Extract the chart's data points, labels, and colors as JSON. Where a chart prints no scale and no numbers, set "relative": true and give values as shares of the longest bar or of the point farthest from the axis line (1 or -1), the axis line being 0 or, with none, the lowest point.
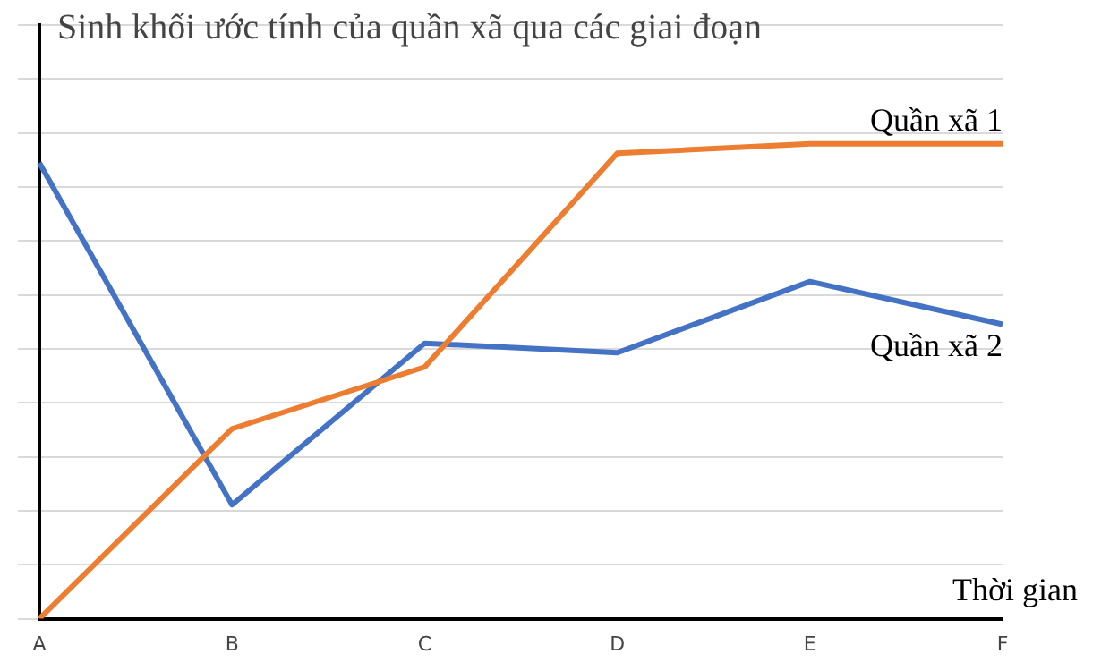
{
  "chart_data": {
    "type": "line",
    "title": "Sinh khối ước tính của quần xã qua các giai đoạn",
    "xlabel": "Thời gian",
    "categories": [
      "A",
      "B",
      "C",
      "D",
      "E",
      "F"
    ],
    "relative": true,
    "grid": "y",
    "legend": false,
    "marker": "none",
    "series": [
      {
        "name": "Quần xã 1",
        "color": "#ed7d31",
        "values": [
          0,
          0.4,
          0.53,
          0.98,
          1,
          1
        ]
      },
      {
        "name": "Quần xã 2",
        "color": "#4472c4",
        "values": [
          0.96,
          0.24,
          0.58,
          0.56,
          0.71,
          0.62
        ]
      }
    ]
  }
}
